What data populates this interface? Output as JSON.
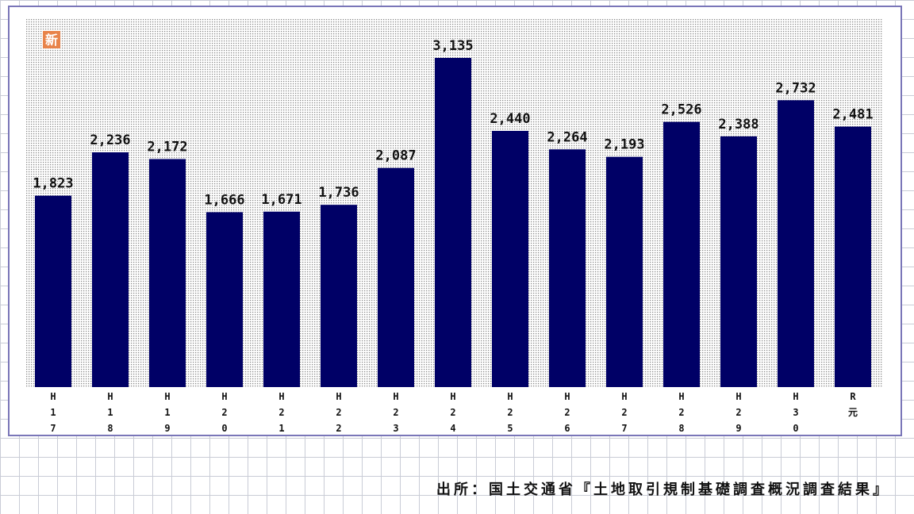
{
  "badge": "新",
  "source": "出所：国土交通省『土地取引規制基礎調査概況調査結果』",
  "colors": {
    "bar": "#000066",
    "frame": "#7a76b8",
    "badge": "#e8834a",
    "dots": "#8a8a8a"
  },
  "chart_data": {
    "type": "bar",
    "categories": [
      "H17",
      "H18",
      "H19",
      "H20",
      "H21",
      "H22",
      "H23",
      "H24",
      "H25",
      "H26",
      "H27",
      "H28",
      "H29",
      "H30",
      "R元"
    ],
    "category_lines": [
      [
        "H",
        "1",
        "7"
      ],
      [
        "H",
        "1",
        "8"
      ],
      [
        "H",
        "1",
        "9"
      ],
      [
        "H",
        "2",
        "0"
      ],
      [
        "H",
        "2",
        "1"
      ],
      [
        "H",
        "2",
        "2"
      ],
      [
        "H",
        "2",
        "3"
      ],
      [
        "H",
        "2",
        "4"
      ],
      [
        "H",
        "2",
        "5"
      ],
      [
        "H",
        "2",
        "6"
      ],
      [
        "H",
        "2",
        "7"
      ],
      [
        "H",
        "2",
        "8"
      ],
      [
        "H",
        "2",
        "9"
      ],
      [
        "H",
        "3",
        "0"
      ],
      [
        "R",
        "元"
      ]
    ],
    "values": [
      1823,
      2236,
      2172,
      1666,
      1671,
      1736,
      2087,
      3135,
      2440,
      2264,
      2193,
      2526,
      2388,
      2732,
      2481
    ],
    "value_labels": [
      "1,823",
      "2,236",
      "2,172",
      "1,666",
      "1,671",
      "1,736",
      "2,087",
      "3,135",
      "2,440",
      "2,264",
      "2,193",
      "2,526",
      "2,388",
      "2,732",
      "2,481"
    ],
    "title": "",
    "xlabel": "",
    "ylabel": "",
    "ylim": [
      0,
      3135
    ],
    "grid": false,
    "legend": "none"
  }
}
